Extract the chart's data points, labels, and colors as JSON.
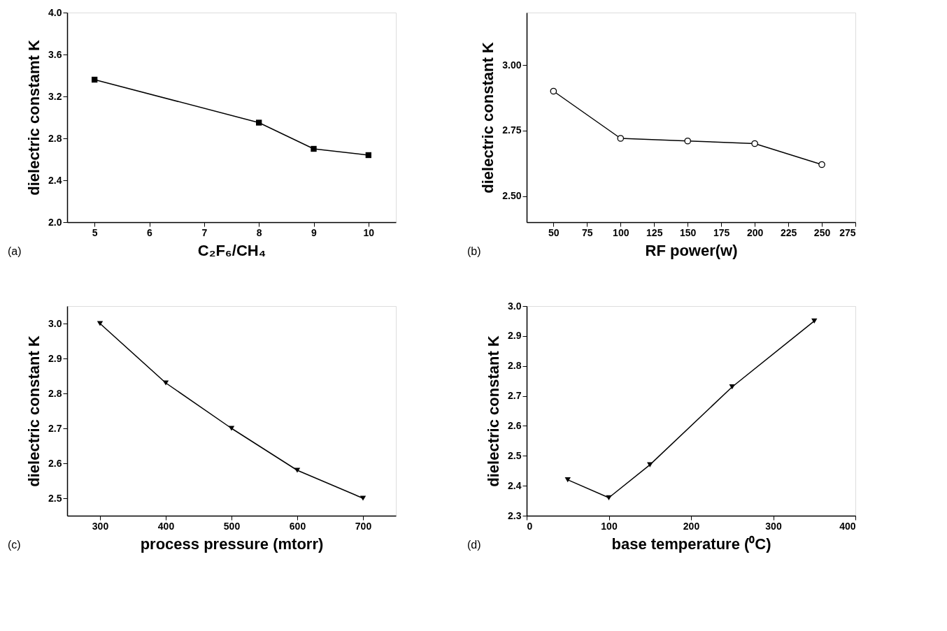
{
  "chart_data": [
    {
      "type": "line",
      "xlabel": "C₂F₆/CH₄",
      "ylabel": "dielectric constamt K",
      "annotations": [
        "(a)"
      ],
      "marker": "square",
      "line_style": "solid",
      "grid": false,
      "x": [
        5,
        8,
        9,
        10
      ],
      "series": [
        {
          "color": "#000000",
          "values": [
            3.36,
            2.95,
            2.7,
            2.64
          ]
        }
      ],
      "xlim": [
        4.5,
        10.5
      ],
      "xticks": [
        5,
        6,
        7,
        8,
        9,
        10
      ],
      "ylim": [
        2.0,
        4.0
      ],
      "yticks": [
        {
          "value": 2,
          "label": "2.0"
        },
        2.4,
        2.8,
        3.2,
        3.6,
        {
          "value": 4,
          "label": "4.0"
        }
      ]
    },
    {
      "type": "line",
      "xlabel": "RF power(w)",
      "ylabel": "dielectric constant K",
      "annotations": [
        "(b)"
      ],
      "marker": "circle",
      "line_style": "solid",
      "grid": false,
      "x": [
        50,
        100,
        150,
        200,
        250
      ],
      "series": [
        {
          "color": "#000000",
          "values": [
            2.9,
            2.72,
            2.71,
            2.7,
            2.62
          ]
        }
      ],
      "xlim": [
        30,
        275
      ],
      "xticks": [
        50,
        75,
        100,
        125,
        150,
        175,
        200,
        225,
        250,
        275
      ],
      "ylim": [
        2.4,
        3.2
      ],
      "yticks": [
        {
          "value": 2.5,
          "label": "2.50"
        },
        2.75,
        {
          "value": 3,
          "label": "3.00"
        }
      ]
    },
    {
      "type": "line",
      "xlabel": "process pressure (mtorr)",
      "ylabel": "dielectric constant K",
      "annotations": [
        "(c)"
      ],
      "marker": "triangle",
      "line_style": "solid",
      "grid": false,
      "x": [
        300,
        400,
        500,
        600,
        700
      ],
      "series": [
        {
          "color": "#000000",
          "values": [
            3.0,
            2.83,
            2.7,
            2.58,
            2.5
          ]
        }
      ],
      "xlim": [
        250,
        750
      ],
      "xticks": [
        300,
        400,
        500,
        600,
        700
      ],
      "ylim": [
        2.45,
        3.05
      ],
      "yticks": [
        2.5,
        2.6,
        2.7,
        2.8,
        2.9,
        {
          "value": 3,
          "label": "3.0"
        }
      ]
    },
    {
      "type": "line",
      "xlabel": "base temperature (⁰C)",
      "ylabel": "dielectric constant K",
      "annotations": [
        "(d)"
      ],
      "marker": "triangle",
      "line_style": "solid",
      "grid": false,
      "x": [
        50,
        100,
        150,
        250,
        350
      ],
      "series": [
        {
          "color": "#000000",
          "values": [
            2.42,
            2.36,
            2.47,
            2.73,
            2.95
          ]
        }
      ],
      "xlim": [
        0,
        400
      ],
      "xticks": [
        0,
        100,
        200,
        300,
        400
      ],
      "ylim": [
        2.3,
        3.0
      ],
      "yticks": [
        2.3,
        2.4,
        2.5,
        2.6,
        2.7,
        2.8,
        2.9,
        {
          "value": 3,
          "label": "3.0"
        }
      ]
    }
  ]
}
